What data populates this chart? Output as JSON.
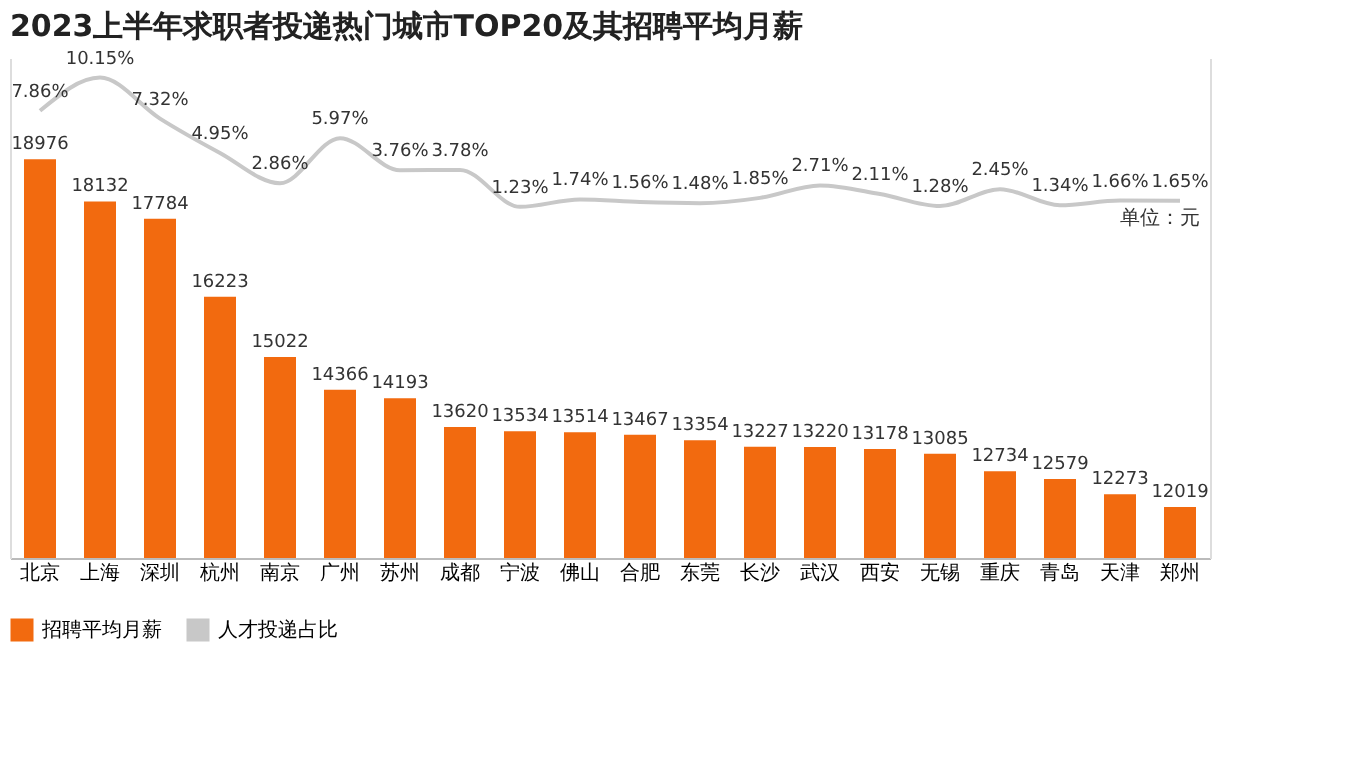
{
  "chart_data": {
    "type": "bar",
    "title": "2023上半年求职者投递热门城市TOP20及其招聘平均月薪",
    "categories": [
      "北京",
      "上海",
      "深圳",
      "杭州",
      "南京",
      "广州",
      "苏州",
      "成都",
      "宁波",
      "佛山",
      "合肥",
      "东莞",
      "长沙",
      "武汉",
      "西安",
      "无锡",
      "重庆",
      "青岛",
      "天津",
      "郑州"
    ],
    "series": [
      {
        "name": "招聘平均月薪",
        "color": "#f26a0f",
        "values": [
          18976,
          18132,
          17784,
          16223,
          15022,
          14366,
          14193,
          13620,
          13534,
          13514,
          13467,
          13354,
          13227,
          13220,
          13178,
          13085,
          12734,
          12579,
          12273,
          12019
        ]
      },
      {
        "name": "人才投递占比",
        "type": "line",
        "axis": "y2",
        "color": "#c8c8c8",
        "values": [
          7.86,
          10.15,
          7.32,
          4.95,
          2.86,
          5.97,
          3.76,
          3.78,
          1.23,
          1.74,
          1.56,
          1.48,
          1.85,
          2.71,
          2.11,
          1.28,
          2.45,
          1.34,
          1.66,
          1.65
        ],
        "value_labels": [
          "7.86%",
          "10.15%",
          "7.32%",
          "4.95%",
          "2.86%",
          "5.97%",
          "3.76%",
          "3.78%",
          "1.23%",
          "1.74%",
          "1.56%",
          "1.48%",
          "1.85%",
          "2.71%",
          "2.11%",
          "1.28%",
          "2.45%",
          "1.34%",
          "1.66%",
          "1.65%"
        ]
      }
    ],
    "ylim": [
      11000,
      21000
    ],
    "y2lim": [
      -23,
      11.5
    ],
    "data_labels": true,
    "tick_labels": "x",
    "grid": false,
    "legend": "bottom",
    "marker": "none",
    "line_style": "solid",
    "annotations": [
      "单位：元"
    ]
  }
}
